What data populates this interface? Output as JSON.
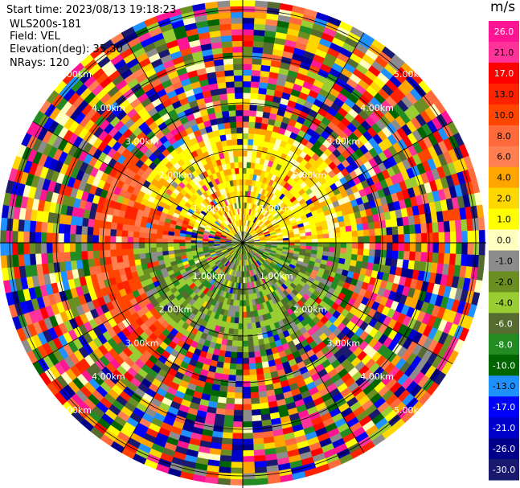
{
  "header": {
    "start_time": "Start time: 2023/08/13 19:18:23",
    "instrument": "WLS200s-181",
    "field": "Field: VEL",
    "elevation": "Elevation(deg): 35.30",
    "nrays": "NRays: 120"
  },
  "chart_data": {
    "type": "heatmap",
    "subtype": "polar-ppi",
    "field": "VEL",
    "units": "m/s",
    "n_rays": 120,
    "range_ring_labels": [
      "1.00km",
      "2.00km",
      "3.00km",
      "4.00km",
      "5.00km"
    ],
    "ring_label_sets": [
      {
        "ring": 1,
        "labels": [
          "1.00km",
          "1.00km",
          "1.00km",
          "1.00km"
        ]
      },
      {
        "ring": 2,
        "labels": [
          "2.00km",
          "2.00km",
          "2.00km",
          "2.00km"
        ]
      },
      {
        "ring": 3,
        "labels": [
          "3.00km",
          "3.00km",
          "3.00km",
          "3.00km"
        ]
      },
      {
        "ring": 4,
        "labels": [
          "4.00km",
          "4.00km",
          "4.00km",
          "4.00km"
        ]
      },
      {
        "ring": 5,
        "labels": [
          "5.00km",
          "5.00km",
          "5.00km",
          "5.00km"
        ]
      }
    ],
    "max_range_km": 5.2,
    "colorbar": {
      "ticks": [
        "26.0",
        "21.0",
        "17.0",
        "13.0",
        "10.0",
        "8.0",
        "6.0",
        "4.0",
        "2.0",
        "1.0",
        "0.0",
        "-1.0",
        "-2.0",
        "-4.0",
        "-6.0",
        "-8.0",
        "-10.0",
        "-13.0",
        "-17.0",
        "-21.0",
        "-26.0",
        "-30.0"
      ],
      "colors": [
        "#ff1493",
        "#ff3399",
        "#ff0000",
        "#ff2200",
        "#ff4500",
        "#ff6a3d",
        "#ff7f50",
        "#ffa500",
        "#ffd700",
        "#ffff00",
        "#ffffc0",
        "#8c8c8c",
        "#6b8e23",
        "#9acd32",
        "#556b2f",
        "#228b22",
        "#006400",
        "#1e90ff",
        "#0000ff",
        "#0000cd",
        "#00008b",
        "#191970"
      ]
    },
    "regions": [
      {
        "name": "near-field approaching",
        "azimuth_deg": [
          -70,
          90
        ],
        "range_km": [
          0.6,
          2.6
        ],
        "dominant": "2.0 to 4.0 m/s (yellow)"
      },
      {
        "name": "near-field receding",
        "azimuth_deg": [
          90,
          270
        ],
        "range_km": [
          0.2,
          2.4
        ],
        "dominant": "-2.0 to -6.0 m/s (green)"
      },
      {
        "name": "west sector",
        "azimuth_deg": [
          220,
          300
        ],
        "range_km": [
          1.5,
          3.2
        ],
        "dominant": "10.0 to 13.0 m/s (orange-red)"
      },
      {
        "name": "far field",
        "range_km": [
          2.6,
          5.2
        ],
        "dominant": "noise, all colors"
      }
    ]
  }
}
